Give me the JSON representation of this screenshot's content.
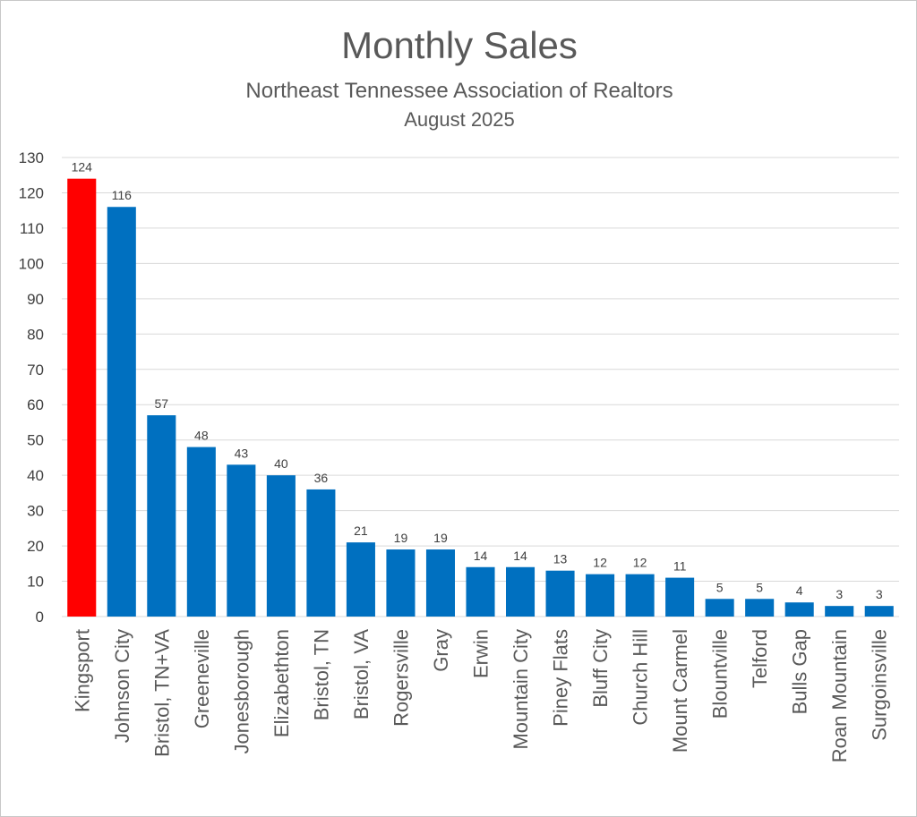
{
  "chart_data": {
    "type": "bar",
    "title": "Monthly Sales",
    "subtitle": "Northeast Tennessee Association of Realtors",
    "subtitle2": "August 2025",
    "xlabel": "",
    "ylabel": "",
    "ylim": [
      0,
      130
    ],
    "ytick_step": 10,
    "grid": true,
    "legend": "none",
    "categories": [
      "Kingsport",
      "Johnson City",
      "Bristol, TN+VA",
      "Greeneville",
      "Jonesborough",
      "Elizabethton",
      "Bristol, TN",
      "Bristol, VA",
      "Rogersville",
      "Gray",
      "Erwin",
      "Mountain City",
      "Piney Flats",
      "Bluff City",
      "Church Hill",
      "Mount Carmel",
      "Blountville",
      "Telford",
      "Bulls Gap",
      "Roan Mountain",
      "Surgoinsville"
    ],
    "values": [
      124,
      116,
      57,
      48,
      43,
      40,
      36,
      21,
      19,
      19,
      14,
      14,
      13,
      12,
      12,
      11,
      5,
      5,
      4,
      3,
      3
    ],
    "highlight_index": 0,
    "colors": {
      "bar": "#0070c0",
      "highlight": "#ff0000"
    }
  }
}
